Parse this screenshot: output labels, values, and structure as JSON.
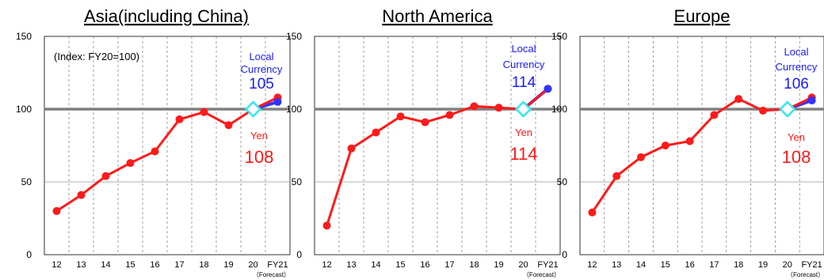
{
  "chart_data": [
    {
      "type": "line",
      "title": "Asia(including China)",
      "note": "(Index: FY20=100)",
      "categories": [
        "12",
        "13",
        "14",
        "15",
        "16",
        "17",
        "18",
        "19",
        "20",
        "FY21"
      ],
      "forecast_label": "（Forecast）",
      "ylim": [
        0,
        150
      ],
      "yticks": [
        "0",
        "50",
        "100",
        "150"
      ],
      "series": [
        {
          "name": "Yen",
          "color": "#ff1a1a",
          "values": [
            30,
            41,
            54,
            63,
            71,
            93,
            98,
            89,
            100,
            108
          ]
        },
        {
          "name": "Local Currency",
          "color": "#3333ff",
          "values": [
            null,
            null,
            null,
            null,
            null,
            null,
            null,
            null,
            100,
            105
          ]
        }
      ],
      "labels": {
        "local": "Local Currency",
        "local_value": "105",
        "yen": "Yen",
        "yen_value": "108"
      }
    },
    {
      "type": "line",
      "title": "North America",
      "categories": [
        "12",
        "13",
        "14",
        "15",
        "16",
        "17",
        "18",
        "19",
        "20",
        "FY21"
      ],
      "forecast_label": "（Forecast）",
      "ylim": [
        0,
        150
      ],
      "yticks": [
        "0",
        "50",
        "100",
        "150"
      ],
      "series": [
        {
          "name": "Yen",
          "color": "#ff1a1a",
          "values": [
            20,
            73,
            84,
            95,
            91,
            96,
            102,
            101,
            100,
            114
          ]
        },
        {
          "name": "Local Currency",
          "color": "#3333ff",
          "values": [
            null,
            null,
            null,
            null,
            null,
            null,
            null,
            null,
            100,
            114
          ]
        }
      ],
      "labels": {
        "local": "Local Currency",
        "local_value": "114",
        "yen": "Yen",
        "yen_value": "114"
      }
    },
    {
      "type": "line",
      "title": "Europe",
      "categories": [
        "12",
        "13",
        "14",
        "15",
        "16",
        "17",
        "18",
        "19",
        "20",
        "FY21"
      ],
      "forecast_label": "（Forecast）",
      "ylim": [
        0,
        150
      ],
      "yticks": [
        "0",
        "50",
        "100",
        "150"
      ],
      "series": [
        {
          "name": "Yen",
          "color": "#ff1a1a",
          "values": [
            29,
            54,
            67,
            75,
            78,
            96,
            107,
            99,
            100,
            108
          ]
        },
        {
          "name": "Local Currency",
          "color": "#3333ff",
          "values": [
            null,
            null,
            null,
            null,
            null,
            null,
            null,
            null,
            100,
            106
          ]
        }
      ],
      "labels": {
        "local": "Local Currency",
        "local_value": "106",
        "yen": "Yen",
        "yen_value": "108"
      }
    }
  ],
  "colors": {
    "grid_100": "#808080",
    "fy20_marker": "#33e6f2"
  }
}
